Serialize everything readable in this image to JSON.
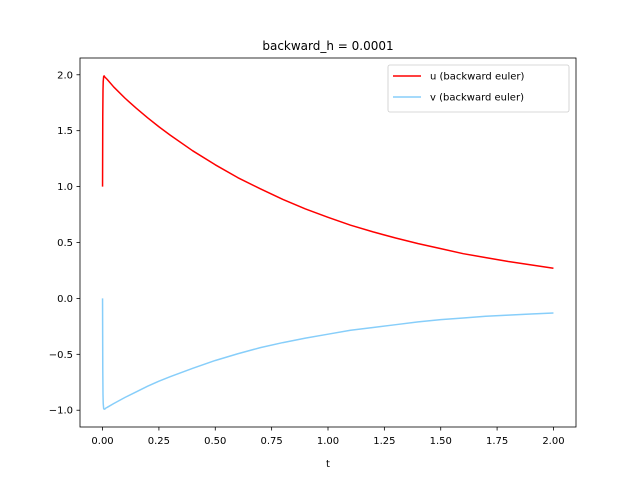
{
  "chart_data": {
    "type": "line",
    "title": "backward_h = 0.0001",
    "xlabel": "t",
    "ylabel": "",
    "xlim": [
      -0.1,
      2.1
    ],
    "ylim": [
      -1.15,
      2.15
    ],
    "xticks": [
      0.0,
      0.25,
      0.5,
      0.75,
      1.0,
      1.25,
      1.5,
      1.75,
      2.0
    ],
    "xtick_labels": [
      "0.00",
      "0.25",
      "0.50",
      "0.75",
      "1.00",
      "1.25",
      "1.50",
      "1.75",
      "2.00"
    ],
    "yticks": [
      -1.0,
      -0.5,
      0.0,
      0.5,
      1.0,
      1.5,
      2.0
    ],
    "ytick_labels": [
      "−1.0",
      "−0.5",
      "0.0",
      "0.5",
      "1.0",
      "1.5",
      "2.0"
    ],
    "grid": false,
    "legend_position": "top-right",
    "series": [
      {
        "name": "u (backward euler)",
        "color": "#ff0000",
        "x": [
          0,
          0.001,
          0.002,
          0.003,
          0.005,
          0.007,
          0.01,
          0.015,
          0.02,
          0.05,
          0.1,
          0.15,
          0.2,
          0.25,
          0.3,
          0.4,
          0.5,
          0.6,
          0.7,
          0.8,
          0.9,
          1.0,
          1.1,
          1.2,
          1.3,
          1.4,
          1.5,
          1.6,
          1.7,
          1.8,
          1.9,
          2.0
        ],
        "y": [
          1.0,
          1.63,
          1.86,
          1.94,
          1.985,
          1.99,
          1.98,
          1.97,
          1.96,
          1.89,
          1.79,
          1.7,
          1.615,
          1.535,
          1.46,
          1.32,
          1.195,
          1.08,
          0.98,
          0.885,
          0.8,
          0.725,
          0.655,
          0.595,
          0.54,
          0.49,
          0.445,
          0.4,
          0.365,
          0.33,
          0.3,
          0.27
        ]
      },
      {
        "name": "v (backward euler)",
        "color": "#87cefa",
        "x": [
          0,
          0.001,
          0.002,
          0.003,
          0.005,
          0.007,
          0.01,
          0.015,
          0.02,
          0.05,
          0.1,
          0.15,
          0.2,
          0.25,
          0.3,
          0.4,
          0.5,
          0.6,
          0.7,
          0.8,
          0.9,
          1.0,
          1.1,
          1.2,
          1.3,
          1.4,
          1.5,
          1.6,
          1.7,
          1.8,
          1.9,
          2.0
        ],
        "y": [
          0.0,
          -0.63,
          -0.86,
          -0.94,
          -0.985,
          -0.99,
          -0.99,
          -0.98,
          -0.975,
          -0.94,
          -0.885,
          -0.835,
          -0.785,
          -0.74,
          -0.7,
          -0.625,
          -0.555,
          -0.495,
          -0.44,
          -0.395,
          -0.355,
          -0.32,
          -0.285,
          -0.26,
          -0.235,
          -0.21,
          -0.19,
          -0.175,
          -0.16,
          -0.15,
          -0.14,
          -0.13
        ]
      }
    ]
  }
}
